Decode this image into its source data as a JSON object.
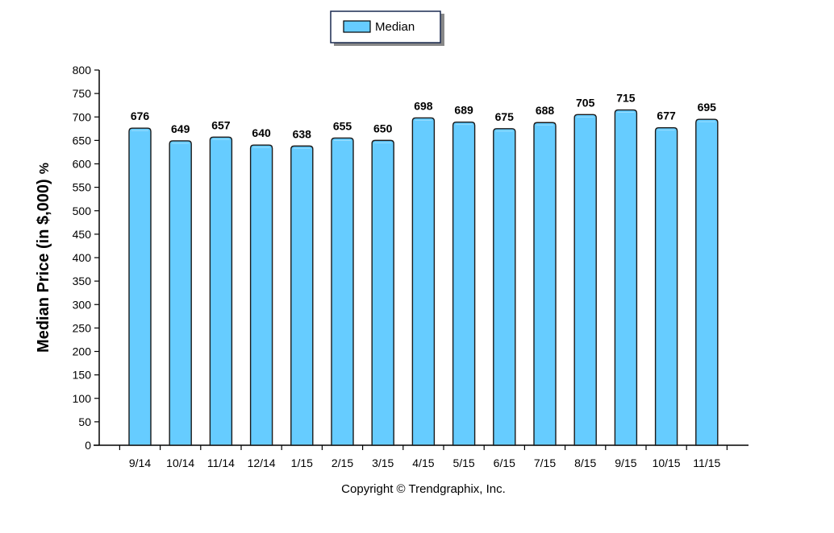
{
  "chart_data": {
    "type": "bar",
    "categories": [
      "9/14",
      "10/14",
      "11/14",
      "12/14",
      "1/15",
      "2/15",
      "3/15",
      "4/15",
      "5/15",
      "6/15",
      "7/15",
      "8/15",
      "9/15",
      "10/15",
      "11/15"
    ],
    "series": [
      {
        "name": "Median",
        "values": [
          676,
          649,
          657,
          640,
          638,
          655,
          650,
          698,
          689,
          675,
          688,
          705,
          715,
          677,
          695
        ],
        "color": "#66ccff"
      }
    ],
    "ylabel": "Median Price (in $,000)",
    "ylabel_suffix": "%",
    "ylim": [
      0,
      800
    ],
    "yticks": [
      0,
      50,
      100,
      150,
      200,
      250,
      300,
      350,
      400,
      450,
      500,
      550,
      600,
      650,
      700,
      750,
      800
    ],
    "grid": false,
    "legend_position": "top-center",
    "data_labels": true
  },
  "footer": {
    "copyright": "Copyright © Trendgraphix, Inc."
  }
}
